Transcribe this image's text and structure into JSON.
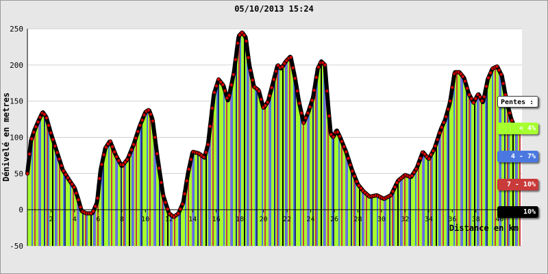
{
  "chart_data": {
    "type": "area",
    "title": "05/10/2013 15:24",
    "xlabel": "Distance en km",
    "ylabel": "Dénivelé en metres",
    "xlim": [
      0,
      41.9
    ],
    "ylim": [
      -50,
      250
    ],
    "yticks": [
      -50,
      0,
      50,
      100,
      150,
      200,
      250
    ],
    "xticks": [
      2,
      4,
      6,
      8,
      10,
      12,
      14,
      16,
      18,
      20,
      22,
      24,
      26,
      28,
      30,
      32,
      34,
      36,
      38,
      40
    ],
    "xticks_shown": [
      "2",
      "4",
      "6",
      "8",
      "10",
      "12",
      "14",
      "16",
      "18",
      "20",
      "22",
      "24",
      "26",
      "28",
      "30",
      "32",
      "34",
      "36",
      "38",
      "40"
    ],
    "grid": true,
    "x": [
      0,
      0.3,
      0.6,
      1.0,
      1.3,
      1.6,
      2.0,
      2.5,
      3.0,
      3.5,
      4.0,
      4.3,
      4.6,
      5.0,
      5.5,
      5.9,
      6.2,
      6.6,
      7.0,
      7.5,
      8.0,
      8.5,
      9.0,
      9.5,
      10.0,
      10.3,
      10.6,
      11.0,
      11.5,
      12.0,
      12.4,
      12.8,
      13.2,
      13.6,
      14.0,
      14.5,
      15.0,
      15.3,
      15.8,
      16.2,
      16.6,
      17.0,
      17.5,
      17.9,
      18.2,
      18.5,
      18.8,
      19.2,
      19.6,
      20.0,
      20.4,
      20.8,
      21.2,
      21.5,
      21.9,
      22.3,
      22.7,
      23.0,
      23.4,
      23.8,
      24.2,
      24.6,
      24.9,
      25.2,
      25.5,
      25.7,
      25.9,
      26.2,
      26.5,
      27.0,
      27.5,
      28.0,
      28.5,
      29.0,
      29.6,
      30.2,
      30.8,
      31.4,
      32.0,
      32.5,
      33.0,
      33.5,
      34.0,
      34.5,
      35.0,
      35.4,
      35.8,
      36.2,
      36.6,
      37.0,
      37.4,
      37.8,
      38.2,
      38.6,
      39.0,
      39.4,
      39.8,
      40.2,
      40.6,
      41.0,
      41.4
    ],
    "y": [
      50,
      95,
      110,
      125,
      135,
      128,
      105,
      80,
      55,
      42,
      30,
      15,
      -2,
      -5,
      -5,
      10,
      55,
      85,
      95,
      75,
      60,
      70,
      90,
      115,
      135,
      138,
      125,
      75,
      20,
      -5,
      -10,
      -5,
      10,
      50,
      80,
      78,
      72,
      90,
      160,
      180,
      172,
      150,
      190,
      240,
      245,
      238,
      200,
      170,
      165,
      140,
      150,
      175,
      200,
      195,
      205,
      212,
      180,
      150,
      120,
      135,
      155,
      195,
      205,
      200,
      140,
      105,
      100,
      110,
      100,
      80,
      55,
      35,
      25,
      18,
      20,
      15,
      20,
      40,
      48,
      45,
      58,
      80,
      70,
      85,
      110,
      125,
      148,
      190,
      190,
      182,
      160,
      148,
      160,
      148,
      180,
      195,
      198,
      185,
      150,
      125,
      110
    ],
    "legend": {
      "title": "Pentes :",
      "items": [
        {
          "label": "< 4%",
          "color": "#a6ff2e"
        },
        {
          "label": "4 - 7%",
          "color": "#4a78e0"
        },
        {
          "label": "7 - 10%",
          "color": "#c93a3a"
        },
        {
          "label": "10%",
          "color": "#000000"
        }
      ]
    },
    "bar_colors": [
      "#a6ff2e",
      "#4a78e0",
      "#c93a3a",
      "#8b6fd0",
      "#1e2a7a",
      "#000000"
    ],
    "marker_color": "#d60000",
    "line_color": "#000000"
  }
}
